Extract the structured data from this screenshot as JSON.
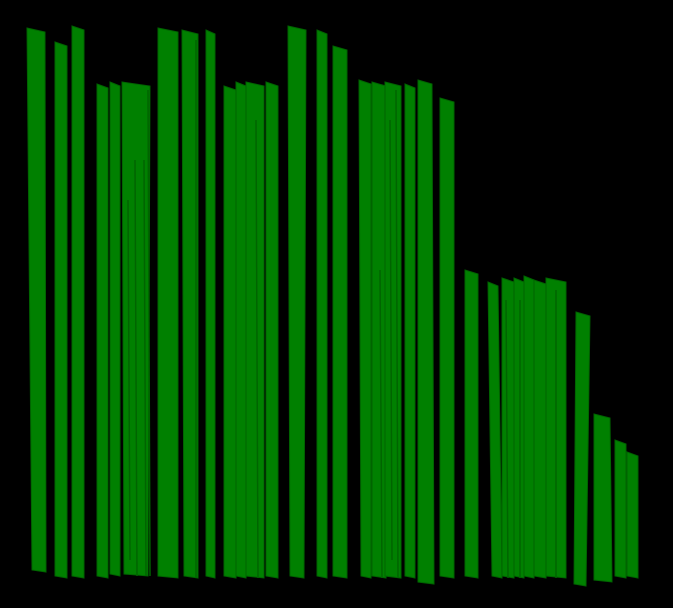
{
  "colors": {
    "background": "#000000",
    "bar_fill": "#008000",
    "bar_stroke": "#006400"
  },
  "figure": {
    "description_visible_text": "",
    "bar_count": 46
  }
}
